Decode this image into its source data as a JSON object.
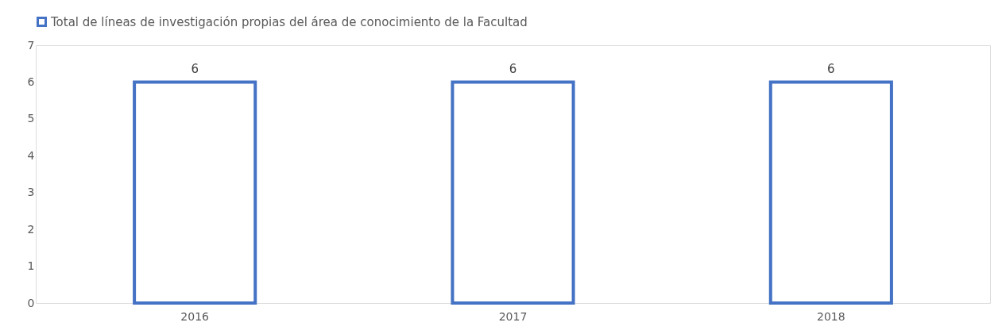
{
  "chart_data": {
    "type": "bar",
    "categories": [
      "2016",
      "2017",
      "2018"
    ],
    "series": [
      {
        "name": "Total de líneas de investigación propias del área de conocimiento de la Facultad",
        "color": "#4472c4",
        "values": [
          6,
          6,
          6
        ]
      }
    ],
    "ylim": [
      0,
      7
    ],
    "yticks": [
      0,
      1,
      2,
      3,
      4,
      5,
      6,
      7
    ],
    "grid": false,
    "legend": "top",
    "data_labels": true
  }
}
